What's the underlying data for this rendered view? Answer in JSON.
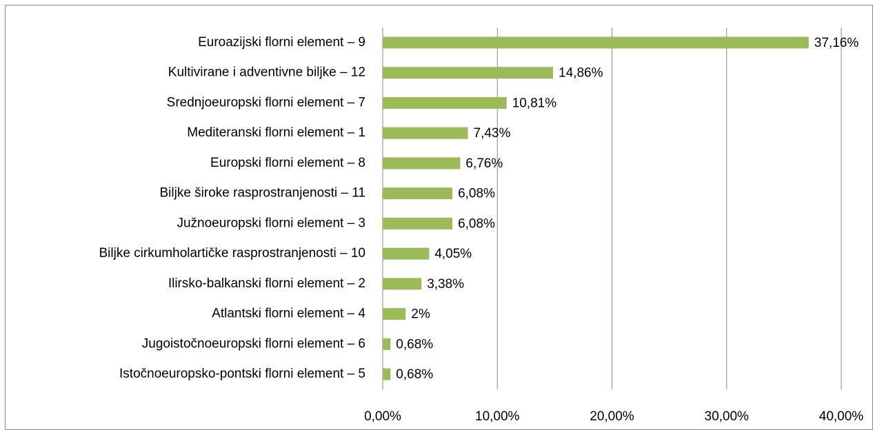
{
  "chart_data": {
    "type": "bar",
    "categories": [
      "Euroazijski florni element – 9",
      "Kultivirane i adventivne biljke – 12",
      "Srednjoeuropski florni element – 7",
      "Mediteranski florni element – 1",
      "Europski florni element – 8",
      "Biljke široke rasprostranjenosti – 11",
      "Južnoeuropski florni element – 3",
      "Biljke cirkumholartičke rasprostranjenosti – 10",
      "Ilirsko-balkanski florni element – 2",
      "Atlantski florni element – 4",
      "Jugoistočnoeuropski florni element – 6",
      "Istočnoeuropsko-pontski florni element – 5"
    ],
    "values": [
      37.16,
      14.86,
      10.81,
      7.43,
      6.76,
      6.08,
      6.08,
      4.05,
      3.38,
      2,
      0.68,
      0.68
    ],
    "value_labels": [
      "37,16%",
      "14,86%",
      "10,81%",
      "7,43%",
      "6,76%",
      "6,08%",
      "6,08%",
      "4,05%",
      "3,38%",
      "2%",
      "0,68%",
      "0,68%"
    ],
    "color": "#9bbb59",
    "xlim": [
      0,
      40
    ],
    "xticks": [
      {
        "value": 0,
        "label": "0,00%"
      },
      {
        "value": 10,
        "label": "10,00%"
      },
      {
        "value": 20,
        "label": "20,00%"
      },
      {
        "value": 30,
        "label": "30,00%"
      },
      {
        "value": 40,
        "label": "40,00%"
      }
    ],
    "grid": true
  }
}
